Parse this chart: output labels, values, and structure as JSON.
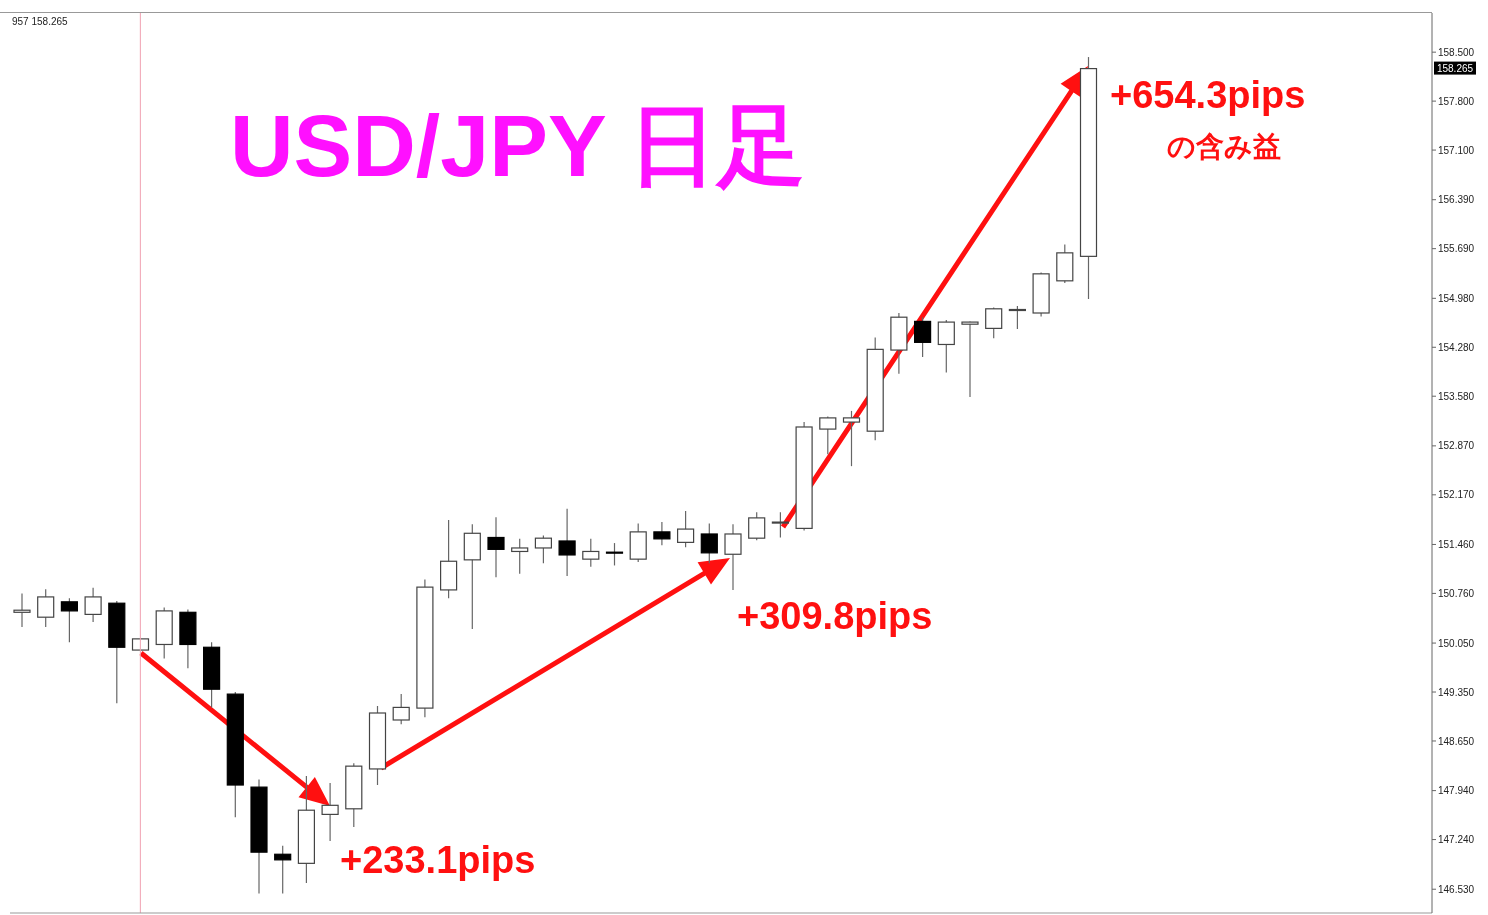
{
  "chart_data": {
    "type": "candlestick",
    "title": "USD/JPY 日足",
    "categories": [
      null,
      null,
      null,
      null,
      null,
      null,
      null,
      null,
      null,
      null,
      null,
      null,
      null,
      null,
      null,
      null,
      null,
      null,
      null,
      null,
      null,
      null,
      null,
      null,
      null,
      null,
      null,
      null,
      null,
      null,
      null,
      null,
      null,
      null,
      null,
      null,
      null,
      null,
      null,
      null,
      null,
      null,
      null,
      null,
      null,
      null,
      null,
      null,
      null,
      null,
      null,
      null,
      null,
      null,
      null,
      null,
      null,
      null,
      null,
      null
    ],
    "ohlc": [
      [
        150.49,
        150.76,
        150.28,
        150.52
      ],
      [
        150.42,
        150.82,
        150.28,
        150.71
      ],
      [
        150.64,
        150.69,
        150.06,
        150.51
      ],
      [
        150.46,
        150.84,
        150.35,
        150.71
      ],
      [
        150.62,
        150.65,
        149.19,
        149.99
      ],
      [
        149.95,
        150.11,
        149.95,
        150.11
      ],
      [
        150.03,
        150.56,
        149.83,
        150.51
      ],
      [
        150.49,
        150.53,
        149.69,
        150.03
      ],
      [
        149.99,
        150.06,
        149.13,
        149.39
      ],
      [
        149.32,
        149.35,
        147.56,
        148.02
      ],
      [
        147.99,
        148.1,
        146.47,
        147.06
      ],
      [
        147.03,
        147.15,
        146.47,
        146.95
      ],
      [
        146.9,
        148.15,
        146.62,
        147.66
      ],
      [
        147.6,
        148.05,
        147.22,
        147.73
      ],
      [
        147.68,
        148.33,
        147.42,
        148.29
      ],
      [
        148.25,
        149.15,
        148.02,
        149.05
      ],
      [
        148.95,
        149.32,
        148.89,
        149.13
      ],
      [
        149.12,
        150.96,
        148.99,
        150.85
      ],
      [
        150.81,
        151.81,
        150.69,
        151.22
      ],
      [
        151.24,
        151.75,
        150.25,
        151.62
      ],
      [
        151.56,
        151.85,
        150.99,
        151.39
      ],
      [
        151.36,
        151.54,
        151.04,
        151.41
      ],
      [
        151.41,
        151.59,
        151.19,
        151.55
      ],
      [
        151.51,
        151.97,
        151.01,
        151.31
      ],
      [
        151.25,
        151.54,
        151.14,
        151.36
      ],
      [
        151.35,
        151.48,
        151.16,
        151.34
      ],
      [
        151.25,
        151.76,
        151.21,
        151.64
      ],
      [
        151.64,
        151.78,
        151.45,
        151.54
      ],
      [
        151.49,
        151.94,
        151.42,
        151.68
      ],
      [
        151.61,
        151.76,
        151.19,
        151.34
      ],
      [
        151.32,
        151.75,
        150.81,
        151.61
      ],
      [
        151.55,
        151.92,
        151.52,
        151.84
      ],
      [
        151.77,
        151.92,
        151.56,
        151.78
      ],
      [
        151.69,
        153.21,
        151.66,
        153.14
      ],
      [
        153.11,
        153.29,
        152.75,
        153.27
      ],
      [
        153.21,
        153.37,
        152.58,
        153.27
      ],
      [
        153.08,
        154.42,
        152.95,
        154.25
      ],
      [
        154.24,
        154.77,
        153.9,
        154.71
      ],
      [
        154.65,
        154.71,
        154.14,
        154.35
      ],
      [
        154.32,
        154.67,
        153.92,
        154.64
      ],
      [
        154.61,
        154.65,
        153.57,
        154.64
      ],
      [
        154.55,
        154.85,
        154.41,
        154.83
      ],
      [
        154.81,
        154.87,
        154.54,
        154.82
      ],
      [
        154.77,
        155.35,
        154.72,
        155.33
      ],
      [
        155.23,
        155.75,
        155.2,
        155.63
      ],
      [
        155.58,
        158.43,
        154.97,
        158.265
      ],
      null,
      null,
      null,
      null,
      null,
      null,
      null,
      null,
      null,
      null,
      null,
      null,
      null,
      null
    ],
    "ylim": [
      146.19,
      159.06
    ],
    "yticks": [
      {
        "value": 146.53,
        "label": "146.530"
      },
      {
        "value": 147.24,
        "label": "147.240"
      },
      {
        "value": 147.94,
        "label": "147.940"
      },
      {
        "value": 148.65,
        "label": "148.650"
      },
      {
        "value": 149.35,
        "label": "149.350"
      },
      {
        "value": 150.05,
        "label": "150.050"
      },
      {
        "value": 150.76,
        "label": "150.760"
      },
      {
        "value": 151.46,
        "label": "151.460"
      },
      {
        "value": 152.17,
        "label": "152.170"
      },
      {
        "value": 152.87,
        "label": "152.870"
      },
      {
        "value": 153.58,
        "label": "153.580"
      },
      {
        "value": 154.28,
        "label": "154.280"
      },
      {
        "value": 154.98,
        "label": "154.980"
      },
      {
        "value": 155.69,
        "label": "155.690"
      },
      {
        "value": 156.39,
        "label": "156.390"
      },
      {
        "value": 157.1,
        "label": "157.100"
      },
      {
        "value": 157.8,
        "label": "157.800"
      },
      {
        "value": 158.5,
        "label": "158.500"
      }
    ],
    "tick_labels": "y",
    "annotations": [
      "957 158.265",
      "+233.1pips",
      "+309.8pips",
      "+654.3pips",
      "の含み益",
      {
        "text": "158.265",
        "y": 158.265
      }
    ]
  }
}
